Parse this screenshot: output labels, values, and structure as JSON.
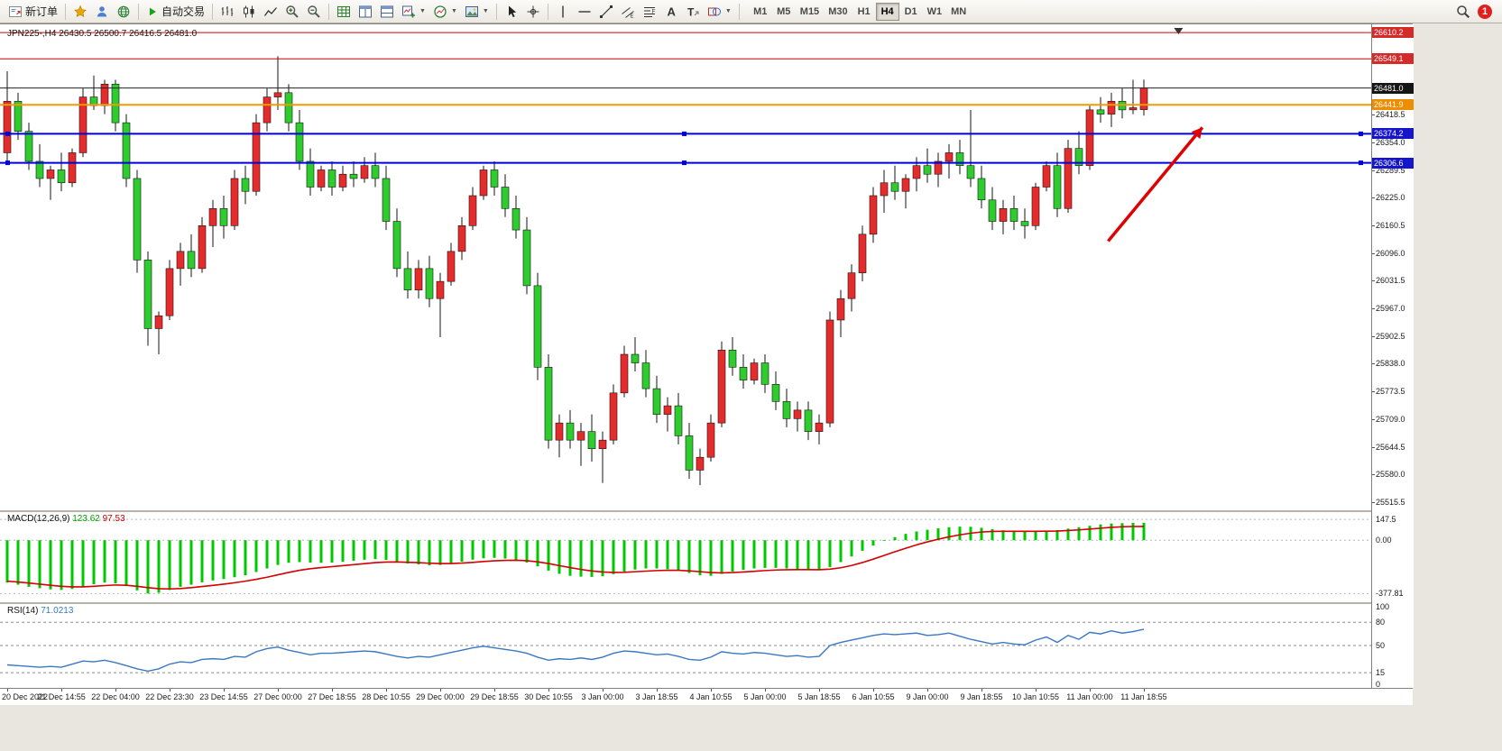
{
  "toolbar": {
    "new_order_label": "新订单",
    "auto_trading_label": "自动交易",
    "timeframes": [
      "M1",
      "M5",
      "M15",
      "M30",
      "H1",
      "H4",
      "D1",
      "W1",
      "MN"
    ],
    "active_timeframe": "H4",
    "notification_count": "1"
  },
  "chart": {
    "title": "JPN225-,H4 26430.5 26500.7 26416.5 26481.0"
  },
  "macd": {
    "label": "MACD(12,26,9)",
    "value_main": "123.62",
    "value_signal": "97.53"
  },
  "rsi": {
    "label": "RSI(14)",
    "value": "71.0213"
  },
  "chart_data": [
    {
      "type": "candlestick",
      "symbol": "JPN225-",
      "timeframe": "H4",
      "ylim": [
        25509,
        26621
      ],
      "up_color": "#e52b2b",
      "down_color": "#2ecc2e",
      "label_every": 5,
      "x_labels": [
        "20 Dec 2022",
        "21 Dec 14:55",
        "22 Dec 04:00",
        "22 Dec 23:30",
        "23 Dec 14:55",
        "27 Dec 00:00",
        "27 Dec 18:55",
        "28 Dec 10:55",
        "29 Dec 00:00",
        "29 Dec 18:55",
        "30 Dec 10:55",
        "3 Jan 00:00",
        "3 Jan 18:55",
        "4 Jan 10:55",
        "5 Jan 00:00",
        "5 Jan 18:55",
        "6 Jan 10:55",
        "9 Jan 00:00",
        "9 Jan 18:55",
        "10 Jan 10:55",
        "11 Jan 00:00",
        "11 Jan 18:55"
      ],
      "ohlc": [
        [
          26330,
          26520,
          26310,
          26450
        ],
        [
          26450,
          26470,
          26360,
          26380
        ],
        [
          26380,
          26400,
          26290,
          26310
        ],
        [
          26310,
          26350,
          26250,
          26270
        ],
        [
          26270,
          26300,
          26220,
          26290
        ],
        [
          26290,
          26330,
          26240,
          26260
        ],
        [
          26260,
          26340,
          26250,
          26330
        ],
        [
          26330,
          26480,
          26320,
          26460
        ],
        [
          26460,
          26510,
          26430,
          26440
        ],
        [
          26440,
          26500,
          26420,
          26490
        ],
        [
          26490,
          26500,
          26380,
          26400
        ],
        [
          26400,
          26420,
          26250,
          26270
        ],
        [
          26270,
          26290,
          26050,
          26080
        ],
        [
          26080,
          26100,
          25880,
          25920
        ],
        [
          25920,
          25960,
          25860,
          25950
        ],
        [
          25950,
          26080,
          25940,
          26060
        ],
        [
          26060,
          26120,
          26020,
          26100
        ],
        [
          26100,
          26140,
          26040,
          26060
        ],
        [
          26060,
          26180,
          26050,
          26160
        ],
        [
          26160,
          26220,
          26110,
          26200
        ],
        [
          26200,
          26230,
          26130,
          26160
        ],
        [
          26160,
          26290,
          26150,
          26270
        ],
        [
          26270,
          26300,
          26210,
          26240
        ],
        [
          26240,
          26420,
          26230,
          26400
        ],
        [
          26400,
          26480,
          26380,
          26460
        ],
        [
          26460,
          26555,
          26430,
          26470
        ],
        [
          26470,
          26490,
          26380,
          26400
        ],
        [
          26400,
          26430,
          26290,
          26310
        ],
        [
          26310,
          26340,
          26230,
          26250
        ],
        [
          26250,
          26300,
          26240,
          26290
        ],
        [
          26290,
          26310,
          26230,
          26250
        ],
        [
          26250,
          26300,
          26240,
          26280
        ],
        [
          26280,
          26310,
          26250,
          26270
        ],
        [
          26270,
          26320,
          26260,
          26300
        ],
        [
          26300,
          26330,
          26250,
          26270
        ],
        [
          26270,
          26300,
          26150,
          26170
        ],
        [
          26170,
          26200,
          26040,
          26060
        ],
        [
          26060,
          26100,
          25990,
          26010
        ],
        [
          26010,
          26080,
          25990,
          26060
        ],
        [
          26060,
          26090,
          25970,
          25990
        ],
        [
          25990,
          26050,
          25900,
          26030
        ],
        [
          26030,
          26120,
          26020,
          26100
        ],
        [
          26100,
          26180,
          26080,
          26160
        ],
        [
          26160,
          26250,
          26150,
          26230
        ],
        [
          26230,
          26300,
          26220,
          26290
        ],
        [
          26290,
          26310,
          26230,
          26250
        ],
        [
          26250,
          26280,
          26180,
          26200
        ],
        [
          26200,
          26230,
          26130,
          26150
        ],
        [
          26150,
          26180,
          26000,
          26020
        ],
        [
          26020,
          26050,
          25800,
          25830
        ],
        [
          25830,
          25860,
          25640,
          25660
        ],
        [
          25660,
          25720,
          25620,
          25700
        ],
        [
          25700,
          25730,
          25640,
          25660
        ],
        [
          25660,
          25700,
          25600,
          25680
        ],
        [
          25680,
          25720,
          25610,
          25640
        ],
        [
          25640,
          25680,
          25560,
          25660
        ],
        [
          25660,
          25790,
          25650,
          25770
        ],
        [
          25770,
          25880,
          25760,
          25860
        ],
        [
          25860,
          25900,
          25820,
          25840
        ],
        [
          25840,
          25870,
          25760,
          25780
        ],
        [
          25780,
          25810,
          25700,
          25720
        ],
        [
          25720,
          25760,
          25680,
          25740
        ],
        [
          25740,
          25770,
          25650,
          25670
        ],
        [
          25670,
          25700,
          25570,
          25590
        ],
        [
          25590,
          25640,
          25555,
          25620
        ],
        [
          25620,
          25720,
          25610,
          25700
        ],
        [
          25700,
          25890,
          25690,
          25870
        ],
        [
          25870,
          25900,
          25810,
          25830
        ],
        [
          25830,
          25860,
          25780,
          25800
        ],
        [
          25800,
          25850,
          25790,
          25840
        ],
        [
          25840,
          25860,
          25770,
          25790
        ],
        [
          25790,
          25820,
          25730,
          25750
        ],
        [
          25750,
          25780,
          25690,
          25710
        ],
        [
          25710,
          25750,
          25680,
          25730
        ],
        [
          25730,
          25750,
          25660,
          25680
        ],
        [
          25680,
          25720,
          25650,
          25700
        ],
        [
          25700,
          25960,
          25690,
          25940
        ],
        [
          25940,
          26010,
          25900,
          25990
        ],
        [
          25990,
          26070,
          25960,
          26050
        ],
        [
          26050,
          26160,
          26030,
          26140
        ],
        [
          26140,
          26250,
          26120,
          26230
        ],
        [
          26230,
          26290,
          26190,
          26260
        ],
        [
          26260,
          26300,
          26220,
          26240
        ],
        [
          26240,
          26280,
          26200,
          26270
        ],
        [
          26270,
          26320,
          26240,
          26300
        ],
        [
          26300,
          26340,
          26260,
          26280
        ],
        [
          26280,
          26330,
          26250,
          26310
        ],
        [
          26310,
          26350,
          26270,
          26330
        ],
        [
          26330,
          26360,
          26280,
          26300
        ],
        [
          26300,
          26430,
          26250,
          26270
        ],
        [
          26270,
          26300,
          26200,
          26220
        ],
        [
          26220,
          26250,
          26150,
          26170
        ],
        [
          26170,
          26220,
          26140,
          26200
        ],
        [
          26200,
          26230,
          26150,
          26170
        ],
        [
          26170,
          26200,
          26130,
          26160
        ],
        [
          26160,
          26260,
          26150,
          26250
        ],
        [
          26250,
          26310,
          26240,
          26300
        ],
        [
          26300,
          26330,
          26180,
          26200
        ],
        [
          26200,
          26360,
          26190,
          26340
        ],
        [
          26340,
          26380,
          26280,
          26300
        ],
        [
          26300,
          26440,
          26290,
          26430
        ],
        [
          26430,
          26460,
          26400,
          26420
        ],
        [
          26420,
          26470,
          26390,
          26450
        ],
        [
          26450,
          26480,
          26410,
          26430
        ],
        [
          26430,
          26500,
          26420,
          26435
        ],
        [
          26430.5,
          26500.7,
          26416.5,
          26481
        ]
      ],
      "levels": [
        {
          "price": 26610.2,
          "color": "#d40000",
          "width": 1
        },
        {
          "price": 26549.1,
          "color": "#d40000",
          "width": 1
        },
        {
          "price": 26481.0,
          "color": "#222222",
          "width": 1
        },
        {
          "price": 26441.9,
          "color": "#f59a00",
          "width": 2
        },
        {
          "price": 26374.2,
          "color": "#0000dd",
          "width": 2,
          "handles": true
        },
        {
          "price": 26306.6,
          "color": "#0000dd",
          "width": 2,
          "handles": true
        }
      ],
      "y_axis": {
        "tagged": [
          {
            "price": 26610.2,
            "text": "26610.2",
            "bg": "#d42a2a"
          },
          {
            "price": 26549.1,
            "text": "26549.1",
            "bg": "#d42a2a"
          },
          {
            "price": 26481.0,
            "text": "26481.0",
            "bg": "#151515"
          },
          {
            "price": 26441.9,
            "text": "26441.9",
            "bg": "#f08c00"
          },
          {
            "price": 26374.2,
            "text": "26374.2",
            "bg": "#1515cc"
          },
          {
            "price": 26306.6,
            "text": "26306.6",
            "bg": "#1515cc"
          }
        ],
        "plain": [
          26418.5,
          26354.0,
          26289.5,
          26225.0,
          26160.5,
          26096.0,
          26031.5,
          25967.0,
          25902.5,
          25838.0,
          25773.5,
          25709.0,
          25644.5,
          25580.0,
          25515.5
        ]
      },
      "annotations": [
        {
          "type": "arrow",
          "color": "#e00000",
          "from_index": 101.7,
          "from_price": 26124,
          "to_index": 110.4,
          "to_price": 26389
        }
      ],
      "shift_marker_index": 108.2
    },
    {
      "type": "bar",
      "name": "MACD(12,26,9)",
      "ylim": [
        -420,
        180
      ],
      "histogram_color": "#00c800",
      "signal_color": "#d40000",
      "current_values": [
        123.62,
        97.53
      ],
      "axis": [
        {
          "value": 147.5,
          "text": "147.5"
        },
        {
          "value": 0,
          "text": "0.00"
        },
        {
          "value": -377.81,
          "text": "-377.81"
        }
      ],
      "histogram": [
        -300,
        -315,
        -330,
        -340,
        -348,
        -352,
        -345,
        -330,
        -312,
        -300,
        -305,
        -325,
        -355,
        -377.81,
        -372,
        -352,
        -330,
        -315,
        -298,
        -285,
        -275,
        -262,
        -248,
        -225,
        -200,
        -175,
        -160,
        -155,
        -158,
        -160,
        -158,
        -152,
        -145,
        -138,
        -134,
        -140,
        -152,
        -165,
        -172,
        -178,
        -175,
        -165,
        -152,
        -138,
        -128,
        -125,
        -130,
        -140,
        -158,
        -185,
        -215,
        -238,
        -252,
        -258,
        -260,
        -255,
        -240,
        -222,
        -208,
        -200,
        -200,
        -205,
        -215,
        -232,
        -248,
        -252,
        -238,
        -222,
        -210,
        -200,
        -196,
        -196,
        -200,
        -205,
        -210,
        -212,
        -190,
        -155,
        -115,
        -75,
        -38,
        -5,
        22,
        45,
        62,
        74,
        84,
        92,
        96,
        95,
        88,
        78,
        70,
        64,
        60,
        62,
        68,
        72,
        82,
        92,
        102,
        112,
        118,
        121,
        123,
        123.62
      ],
      "signal": [
        -290,
        -296,
        -303,
        -311,
        -319,
        -326,
        -330,
        -330,
        -326,
        -321,
        -317,
        -319,
        -326,
        -336,
        -343,
        -345,
        -342,
        -336,
        -328,
        -320,
        -311,
        -301,
        -290,
        -277,
        -262,
        -245,
        -228,
        -213,
        -202,
        -194,
        -187,
        -180,
        -173,
        -166,
        -159,
        -155,
        -154,
        -156,
        -159,
        -163,
        -165,
        -165,
        -162,
        -157,
        -151,
        -146,
        -143,
        -142,
        -145,
        -153,
        -165,
        -180,
        -194,
        -207,
        -218,
        -225,
        -228,
        -227,
        -223,
        -219,
        -215,
        -213,
        -213,
        -217,
        -223,
        -229,
        -231,
        -229,
        -225,
        -220,
        -215,
        -211,
        -209,
        -208,
        -208,
        -209,
        -205,
        -195,
        -179,
        -158,
        -134,
        -108,
        -82,
        -57,
        -33,
        -12,
        7,
        24,
        38,
        50,
        58,
        62,
        63,
        63,
        63,
        63,
        64,
        65,
        69,
        73,
        79,
        85,
        91,
        95,
        97,
        97.53
      ]
    },
    {
      "type": "line",
      "name": "RSI(14)",
      "ylim": [
        0,
        100
      ],
      "color": "#3a78c3",
      "current_value": 71.0213,
      "levels": [
        80,
        50,
        15
      ],
      "axis": [
        {
          "value": 100,
          "text": "100"
        },
        {
          "value": 80,
          "text": "80"
        },
        {
          "value": 50,
          "text": "50"
        },
        {
          "value": 15,
          "text": "15"
        },
        {
          "value": 0,
          "text": "0"
        }
      ],
      "values": [
        25,
        24,
        23,
        22,
        23,
        22,
        26,
        30,
        29,
        31,
        28,
        24,
        20,
        17,
        20,
        26,
        29,
        28,
        32,
        33,
        32,
        36,
        35,
        42,
        46,
        48,
        44,
        41,
        38,
        40,
        40,
        41,
        42,
        43,
        42,
        39,
        36,
        34,
        36,
        35,
        38,
        41,
        44,
        47,
        49,
        47,
        45,
        43,
        40,
        35,
        31,
        33,
        32,
        34,
        32,
        35,
        40,
        43,
        42,
        40,
        38,
        39,
        36,
        32,
        31,
        35,
        42,
        40,
        39,
        41,
        40,
        38,
        36,
        37,
        35,
        36,
        50,
        54,
        57,
        60,
        63,
        65,
        64,
        65,
        66,
        63,
        64,
        66,
        62,
        58,
        55,
        52,
        54,
        52,
        51,
        57,
        61,
        54,
        63,
        58,
        67,
        65,
        69,
        66,
        68,
        71.02
      ]
    }
  ]
}
